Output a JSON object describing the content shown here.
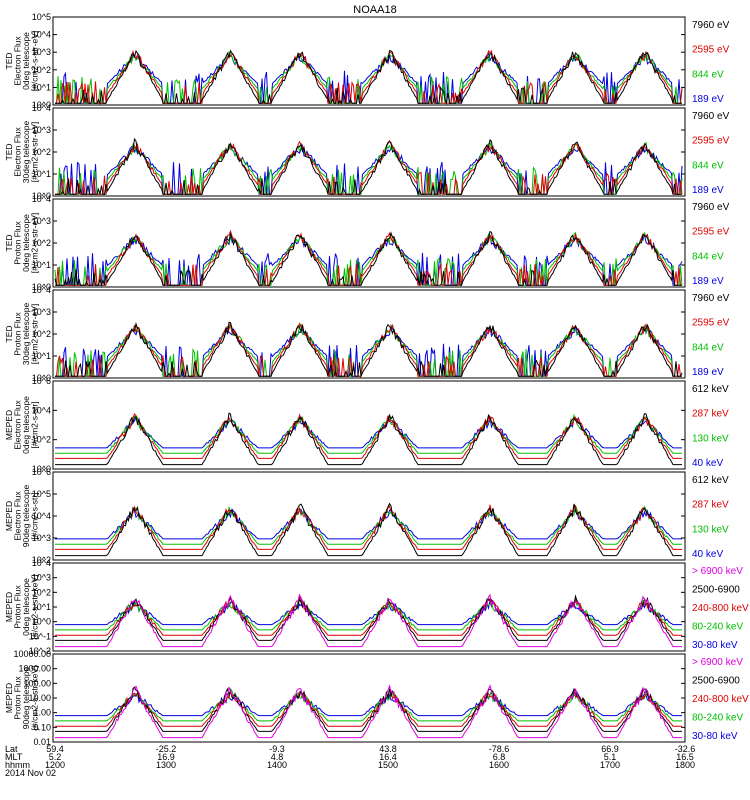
{
  "chart_data": {
    "type": "line",
    "title": "NOAA18",
    "date_label": "2014 Nov 02",
    "x_ticks": {
      "row_labels": [
        "Lat",
        "MLT",
        "hhmm"
      ],
      "lat": [
        "59.4",
        "-25.2",
        "-9.3",
        "43.8",
        "-78.6",
        "66.9",
        "-32.6"
      ],
      "mlt": [
        "5.2",
        "16.9",
        "4.8",
        "16.4",
        "6.8",
        "5.1",
        "16.5"
      ],
      "hhmm": [
        "1200",
        "1300",
        "1400",
        "1500",
        "1600",
        "1700",
        "1800"
      ]
    },
    "panels": [
      {
        "ylabel": [
          "TED",
          "Electron Flux",
          "0deg telescope",
          "[#/cm2-s-str-eV]"
        ],
        "yticks": [
          "10^0",
          "10^1",
          "10^2",
          "10^3",
          "10^4",
          "10^5"
        ],
        "ylog": [
          0,
          5
        ],
        "channels": [
          {
            "label": "7960 eV",
            "color": "#000000"
          },
          {
            "label": "2595 eV",
            "color": "#e00000"
          },
          {
            "label": "844 eV",
            "color": "#00c000"
          },
          {
            "label": "189 eV",
            "color": "#0000e0"
          }
        ]
      },
      {
        "ylabel": [
          "TED",
          "Electron Flux",
          "30deg telescope",
          "[#/cm2-s-str-eV]"
        ],
        "yticks": [
          "10^0",
          "10^1",
          "10^2",
          "10^3",
          "10^4"
        ],
        "ylog": [
          0,
          4
        ],
        "channels": [
          {
            "label": "7960 eV",
            "color": "#000000"
          },
          {
            "label": "2595 eV",
            "color": "#e00000"
          },
          {
            "label": "844 eV",
            "color": "#00c000"
          },
          {
            "label": "189 eV",
            "color": "#0000e0"
          }
        ]
      },
      {
        "ylabel": [
          "TED",
          "Proton Flux",
          "0deg telescope",
          "[#/cm2-s-str-eV]"
        ],
        "yticks": [
          "10^0",
          "10^1",
          "10^2",
          "10^3",
          "10^4"
        ],
        "ylog": [
          0,
          4
        ],
        "channels": [
          {
            "label": "7960 eV",
            "color": "#000000"
          },
          {
            "label": "2595 eV",
            "color": "#e00000"
          },
          {
            "label": "844 eV",
            "color": "#00c000"
          },
          {
            "label": "189 eV",
            "color": "#0000e0"
          }
        ]
      },
      {
        "ylabel": [
          "TED",
          "Proton Flux",
          "30deg telescope",
          "[#/cm2-s-str-eV]"
        ],
        "yticks": [
          "10^0",
          "10^1",
          "10^2",
          "10^3",
          "10^4"
        ],
        "ylog": [
          0,
          4
        ],
        "channels": [
          {
            "label": "7960 eV",
            "color": "#000000"
          },
          {
            "label": "2595 eV",
            "color": "#e00000"
          },
          {
            "label": "844 eV",
            "color": "#00c000"
          },
          {
            "label": "189 eV",
            "color": "#0000e0"
          }
        ]
      },
      {
        "ylabel": [
          "MEPED",
          "Electron Flux",
          "0deg telescope",
          "[#/cm2-s-str]"
        ],
        "yticks": [
          "10^0",
          "10^2",
          "10^4",
          "10^6"
        ],
        "ylog": [
          0,
          6
        ],
        "channels": [
          {
            "label": "612 keV",
            "color": "#000000"
          },
          {
            "label": "287 keV",
            "color": "#e00000"
          },
          {
            "label": "130 keV",
            "color": "#00c000"
          },
          {
            "label": "40 keV",
            "color": "#0000e0"
          }
        ]
      },
      {
        "ylabel": [
          "MEPED",
          "Electron Flux",
          "90deg telescope",
          "[#/cm2-s-str]"
        ],
        "yticks": [
          "10^2",
          "10^3",
          "10^4",
          "10^5",
          "10^6"
        ],
        "ylog": [
          2,
          6
        ],
        "channels": [
          {
            "label": "612 keV",
            "color": "#000000"
          },
          {
            "label": "287 keV",
            "color": "#e00000"
          },
          {
            "label": "130 keV",
            "color": "#00c000"
          },
          {
            "label": "40 keV",
            "color": "#0000e0"
          }
        ]
      },
      {
        "ylabel": [
          "MEPED",
          "Proton Flux",
          "0deg telescope",
          "[#/cm2-s-str-keV]"
        ],
        "yticks": [
          "10^-2",
          "10^-1",
          "10^0",
          "10^1",
          "10^2",
          "10^3",
          "10^4"
        ],
        "ylog": [
          -2,
          4
        ],
        "channels": [
          {
            "label": "> 6900 keV",
            "color": "#e000e0"
          },
          {
            "label": "2500-6900",
            "color": "#000000"
          },
          {
            "label": "240-800 keV",
            "color": "#e00000"
          },
          {
            "label": "80-240 keV",
            "color": "#00c000"
          },
          {
            "label": "30-80 keV",
            "color": "#0000e0"
          }
        ]
      },
      {
        "ylabel": [
          "MEPED",
          "Proton Flux",
          "90deg telescope",
          "[#/cm2-s-str-keV]"
        ],
        "yticks": [
          "0.01",
          "0.10",
          "1.00",
          "10.00",
          "100.00",
          "1000.00",
          "10000.00"
        ],
        "ylog": [
          -2,
          4
        ],
        "channels": [
          {
            "label": "> 6900 keV",
            "color": "#e000e0"
          },
          {
            "label": "2500-6900",
            "color": "#000000"
          },
          {
            "label": "240-800 keV",
            "color": "#e00000"
          },
          {
            "label": "80-240 keV",
            "color": "#00c000"
          },
          {
            "label": "30-80 keV",
            "color": "#0000e0"
          }
        ]
      }
    ]
  }
}
